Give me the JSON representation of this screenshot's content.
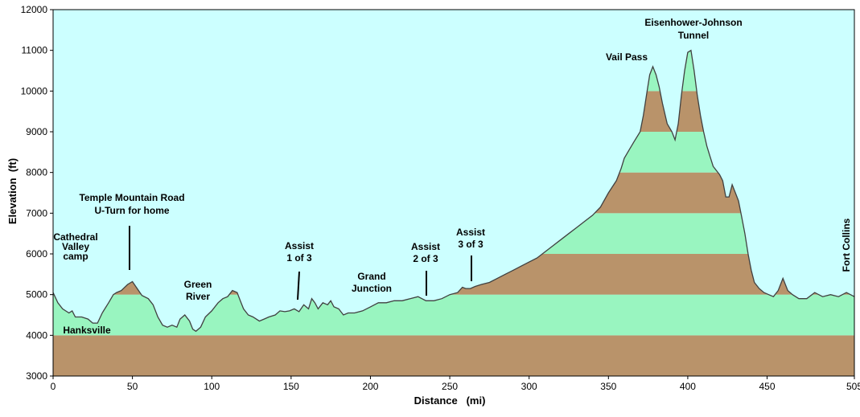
{
  "chart_data": {
    "type": "area",
    "xlabel": "Distance   (mi)",
    "ylabel": "Elevation  (ft)",
    "xlim": [
      0,
      505
    ],
    "ylim": [
      3000,
      12000
    ],
    "xticks": [
      0,
      50,
      100,
      150,
      200,
      250,
      300,
      350,
      400,
      450,
      505
    ],
    "yticks": [
      3000,
      4000,
      5000,
      6000,
      7000,
      8000,
      9000,
      10000,
      11000,
      12000
    ],
    "grid": false,
    "band_step": 1000,
    "colors": {
      "sky": "#ccffff",
      "band_light": "#99f5c0",
      "band_dark": "#b9936a",
      "outline": "#404040",
      "frame": "#000000"
    },
    "profile": {
      "x": [
        0,
        3,
        6,
        10,
        12,
        14,
        18,
        22,
        25,
        28,
        31,
        35,
        38,
        40,
        43,
        47,
        50,
        53,
        56,
        60,
        63,
        66,
        69,
        72,
        75,
        78,
        80,
        83,
        86,
        88,
        90,
        93,
        96,
        100,
        104,
        107,
        110,
        113,
        116,
        118,
        120,
        123,
        126,
        130,
        133,
        136,
        140,
        143,
        146,
        149,
        152,
        155,
        158,
        161,
        163,
        165,
        167,
        170,
        173,
        175,
        177,
        180,
        183,
        186,
        190,
        195,
        200,
        205,
        210,
        215,
        220,
        225,
        230,
        235,
        240,
        245,
        250,
        255,
        258,
        260,
        263,
        266,
        270,
        275,
        280,
        285,
        290,
        295,
        300,
        305,
        310,
        315,
        320,
        325,
        330,
        335,
        340,
        345,
        350,
        355,
        358,
        360,
        363,
        366,
        370,
        372,
        374,
        376,
        378,
        380,
        382,
        384,
        387,
        390,
        392,
        394,
        396,
        398,
        400,
        402,
        404,
        406,
        408,
        410,
        412,
        414,
        416,
        418,
        420,
        422,
        424,
        426,
        428,
        430,
        432,
        434,
        436,
        438,
        440,
        442,
        445,
        448,
        451,
        454,
        457,
        460,
        463,
        466,
        470,
        475,
        480,
        485,
        490,
        495,
        500,
        505
      ],
      "y": [
        5050,
        4800,
        4650,
        4550,
        4600,
        4450,
        4450,
        4400,
        4300,
        4300,
        4550,
        4800,
        5000,
        5050,
        5100,
        5250,
        5320,
        5150,
        4980,
        4900,
        4750,
        4450,
        4250,
        4200,
        4250,
        4200,
        4400,
        4500,
        4350,
        4150,
        4100,
        4200,
        4450,
        4600,
        4800,
        4900,
        4950,
        5100,
        5050,
        4850,
        4650,
        4500,
        4450,
        4350,
        4400,
        4450,
        4500,
        4600,
        4580,
        4600,
        4650,
        4580,
        4750,
        4650,
        4900,
        4800,
        4650,
        4800,
        4750,
        4850,
        4700,
        4650,
        4500,
        4550,
        4550,
        4600,
        4700,
        4800,
        4800,
        4850,
        4850,
        4900,
        4950,
        4850,
        4850,
        4900,
        5000,
        5050,
        5180,
        5150,
        5150,
        5200,
        5250,
        5300,
        5400,
        5500,
        5600,
        5700,
        5800,
        5900,
        6050,
        6200,
        6350,
        6500,
        6650,
        6800,
        6950,
        7150,
        7500,
        7800,
        8100,
        8350,
        8550,
        8750,
        9000,
        9400,
        9900,
        10400,
        10600,
        10400,
        10100,
        9700,
        9200,
        9000,
        8800,
        9200,
        9900,
        10500,
        10950,
        11000,
        10500,
        9900,
        9400,
        9000,
        8650,
        8400,
        8150,
        8050,
        7950,
        7800,
        7400,
        7400,
        7700,
        7500,
        7300,
        6900,
        6500,
        6000,
        5600,
        5300,
        5150,
        5050,
        5000,
        4950,
        5100,
        5400,
        5100,
        5000,
        4900,
        4900,
        5050,
        4950,
        5000,
        4950,
        5050,
        4950
      ]
    },
    "annotations": [
      {
        "lines": [
          "Cathedral",
          "Valley",
          "camp"
        ]
      },
      {
        "lines": [
          "Temple Mountain Road",
          "U-Turn for home"
        ]
      },
      {
        "lines": [
          "Hanksville"
        ]
      },
      {
        "lines": [
          "Green",
          "River"
        ]
      },
      {
        "lines": [
          "Assist",
          "1 of 3"
        ]
      },
      {
        "lines": [
          "Grand",
          "Junction"
        ]
      },
      {
        "lines": [
          "Assist",
          "2 of 3"
        ]
      },
      {
        "lines": [
          "Assist",
          "3 of 3"
        ]
      },
      {
        "lines": [
          "Vail Pass"
        ]
      },
      {
        "lines": [
          "Eisenhower-Johnson",
          "Tunnel"
        ]
      },
      {
        "lines": [
          "Fort Collins"
        ]
      }
    ]
  }
}
